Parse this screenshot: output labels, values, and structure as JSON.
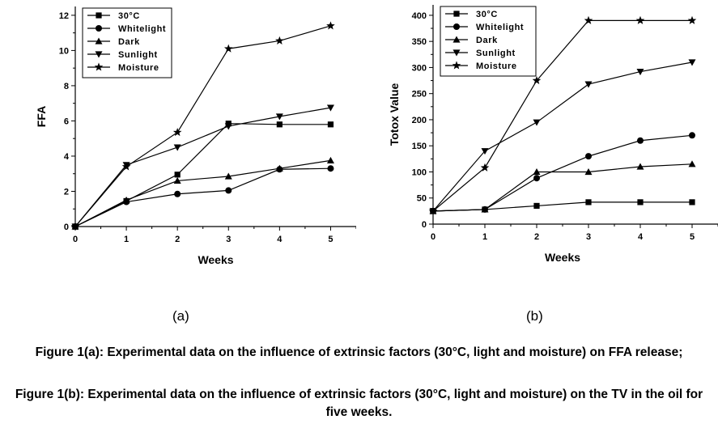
{
  "panel_labels": [
    "(a)",
    "(b)"
  ],
  "captions": [
    "Figure 1(a): Experimental data on the influence of extrinsic factors (30°C, light and moisture) on FFA release;",
    "Figure 1(b): Experimental data on the influence of extrinsic factors (30°C, light and moisture) on the TV in the oil for five weeks."
  ],
  "chart_data": [
    {
      "type": "line",
      "xlabel": "Weeks",
      "ylabel": "FFA",
      "xlim": [
        0,
        5.5
      ],
      "ylim": [
        0,
        12.5
      ],
      "x_ticks": [
        0,
        1,
        2,
        3,
        4,
        5
      ],
      "y_ticks": [
        0,
        2,
        4,
        6,
        8,
        10,
        12
      ],
      "legend_position": "top-left",
      "x": [
        0,
        1,
        2,
        3,
        4,
        5
      ],
      "series": [
        {
          "name": "30°C",
          "marker": "square",
          "values": [
            0,
            1.45,
            2.95,
            5.85,
            5.8,
            5.8
          ]
        },
        {
          "name": "Whitelight",
          "marker": "circle",
          "values": [
            0,
            1.4,
            1.85,
            2.05,
            3.25,
            3.3
          ]
        },
        {
          "name": "Dark",
          "marker": "triangle-up",
          "values": [
            0,
            1.5,
            2.6,
            2.85,
            3.3,
            3.75
          ]
        },
        {
          "name": "Sunlight",
          "marker": "triangle-down",
          "values": [
            0,
            3.5,
            4.5,
            5.7,
            6.25,
            6.75
          ]
        },
        {
          "name": "Moisture",
          "marker": "star",
          "values": [
            0,
            3.4,
            5.35,
            10.1,
            10.55,
            11.4
          ]
        }
      ]
    },
    {
      "type": "line",
      "xlabel": "Weeks",
      "ylabel": "Totox Value",
      "xlim": [
        0,
        5.5
      ],
      "ylim": [
        0,
        420
      ],
      "x_ticks": [
        0,
        1,
        2,
        3,
        4,
        5
      ],
      "y_ticks": [
        0,
        50,
        100,
        150,
        200,
        250,
        300,
        350,
        400
      ],
      "legend_position": "top-left",
      "x": [
        0,
        1,
        2,
        3,
        4,
        5
      ],
      "series": [
        {
          "name": "30°C",
          "marker": "square",
          "values": [
            25,
            28,
            35,
            42,
            42,
            42
          ]
        },
        {
          "name": "Whitelight",
          "marker": "circle",
          "values": [
            25,
            28,
            88,
            130,
            160,
            170
          ]
        },
        {
          "name": "Dark",
          "marker": "triangle-up",
          "values": [
            25,
            28,
            100,
            100,
            110,
            115
          ]
        },
        {
          "name": "Sunlight",
          "marker": "triangle-down",
          "values": [
            25,
            140,
            195,
            268,
            292,
            310
          ]
        },
        {
          "name": "Moisture",
          "marker": "star",
          "values": [
            25,
            108,
            275,
            390,
            390,
            390
          ]
        }
      ]
    }
  ]
}
